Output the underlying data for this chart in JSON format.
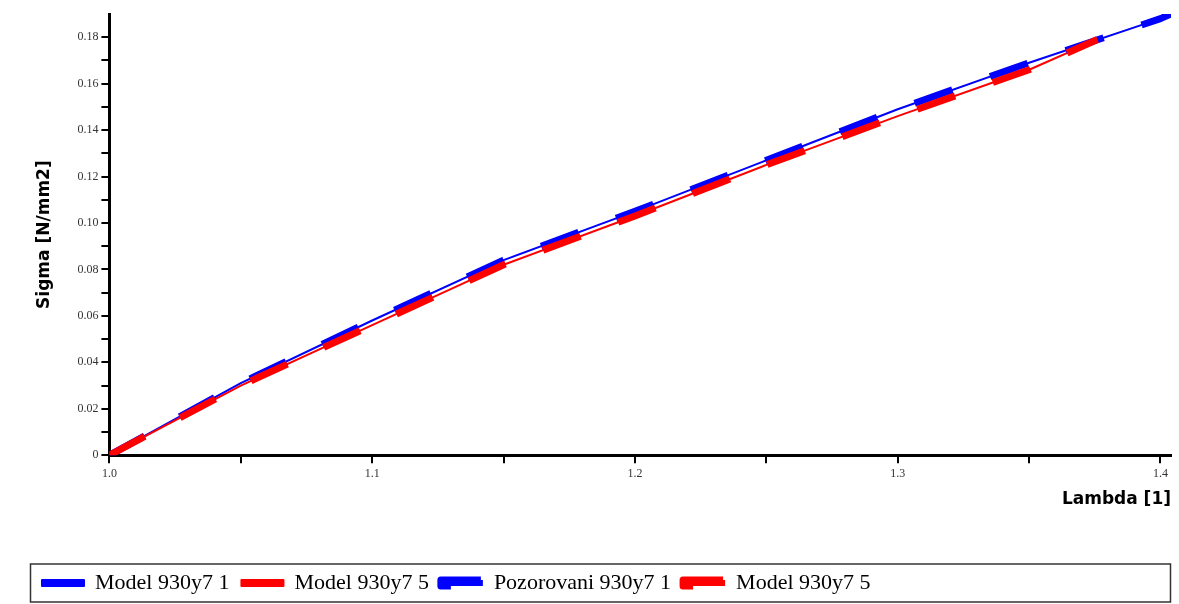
{
  "chart_data": {
    "type": "line",
    "xlabel": "Lambda [1]",
    "ylabel": "Sigma [N/mm2]",
    "xlim": [
      1.0,
      1.404
    ],
    "ylim": [
      0,
      0.19
    ],
    "xticks": [
      {
        "value": 1.0,
        "label": "1.0"
      },
      {
        "value": 1.05,
        "label": null
      },
      1.1,
      {
        "value": 1.15,
        "label": null
      },
      1.2,
      {
        "value": 1.25,
        "label": null
      },
      1.3,
      {
        "value": 1.35,
        "label": null
      },
      1.4
    ],
    "yticks": [
      0,
      {
        "value": 0.01,
        "label": null
      },
      0.02,
      {
        "value": 0.03,
        "label": null
      },
      0.04,
      {
        "value": 0.05,
        "label": null
      },
      0.06,
      {
        "value": 0.07,
        "label": null
      },
      0.08,
      {
        "value": 0.09,
        "label": null
      },
      {
        "value": 0.1,
        "label": "0.10"
      },
      {
        "value": 0.11,
        "label": null
      },
      0.12,
      {
        "value": 0.13,
        "label": null
      },
      0.14,
      {
        "value": 0.15,
        "label": null
      },
      0.16,
      {
        "value": 0.17,
        "label": null
      },
      0.18
    ],
    "grid": false,
    "legend": "bottom",
    "marker": "none",
    "series": [
      {
        "name": "Model 930y7 1",
        "color": "#0000ff",
        "line_style": "solid",
        "x": [
          1.0,
          1.05,
          1.1,
          1.15,
          1.2,
          1.25,
          1.3,
          1.35,
          1.4,
          1.404
        ],
        "values": [
          0,
          0.031,
          0.058,
          0.084,
          0.105,
          0.127,
          0.149,
          0.169,
          0.188,
          0.19
        ]
      },
      {
        "name": "Model 930y7 5",
        "color": "#ff0000",
        "line_style": "solid",
        "x": [
          1.0,
          1.05,
          1.1,
          1.15,
          1.2,
          1.25,
          1.3,
          1.35,
          1.376
        ],
        "values": [
          0,
          0.03,
          0.056,
          0.082,
          0.103,
          0.125,
          0.146,
          0.166,
          0.179
        ]
      },
      {
        "name": "Pozorovani 930y7 1",
        "color": "#0000ff",
        "line_style": "dashed",
        "x": [
          1.0,
          1.05,
          1.1,
          1.15,
          1.2,
          1.25,
          1.3,
          1.35,
          1.4,
          1.404
        ],
        "values": [
          0,
          0.031,
          0.058,
          0.084,
          0.105,
          0.127,
          0.149,
          0.169,
          0.188,
          0.19
        ]
      },
      {
        "name": "Model 930y7 5",
        "color": "#ff0000",
        "line_style": "dashed",
        "x": [
          1.0,
          1.05,
          1.1,
          1.15,
          1.2,
          1.25,
          1.3,
          1.35,
          1.376
        ],
        "values": [
          0,
          0.03,
          0.056,
          0.082,
          0.103,
          0.125,
          0.146,
          0.166,
          0.179
        ]
      }
    ]
  }
}
